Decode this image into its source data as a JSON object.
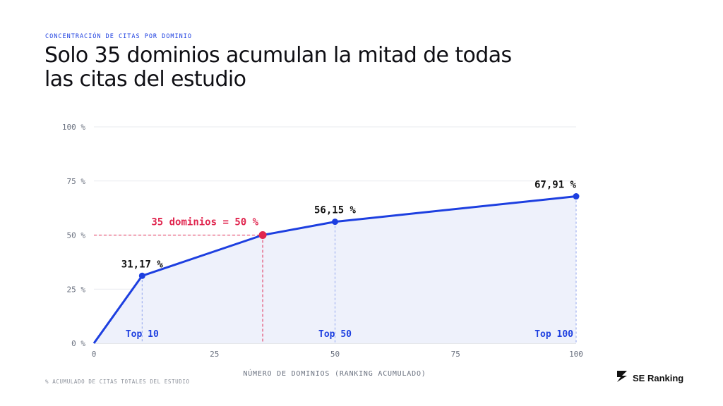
{
  "eyebrow": "CONCENTRACIÓN DE CITAS POR DOMINIO",
  "title_line1": "Solo 35 dominios acumulan la mitad de todas",
  "title_line2": "las citas del estudio",
  "footnote": "% ACUMULADO DE CITAS TOTALES DEL ESTUDIO",
  "brand": {
    "name": "SE Ranking",
    "logo_icon": "se-ranking-logo-icon"
  },
  "colors": {
    "line": "#1d3fe0",
    "highlight": "#e0264f",
    "area": "#eef1fb",
    "grid": "#e9ebef",
    "axis": "#6b7280"
  },
  "chart_data": {
    "type": "area",
    "xlabel": "NÚMERO DE DOMINIOS (RANKING ACUMULADO)",
    "ylabel": "",
    "xlim": [
      0,
      100
    ],
    "ylim": [
      0,
      100
    ],
    "x_ticks": [
      0,
      25,
      50,
      75,
      100
    ],
    "x_tick_labels": [
      "0",
      "25",
      "50",
      "75",
      "100"
    ],
    "y_ticks": [
      0,
      25,
      50,
      75,
      100
    ],
    "y_tick_labels": [
      "0 %",
      "25 %",
      "50 %",
      "75 %",
      "100 %"
    ],
    "grid": "horizontal",
    "series": [
      {
        "x": [
          0,
          10,
          35,
          50,
          100
        ],
        "y": [
          0,
          31.17,
          50,
          56.15,
          67.91
        ]
      }
    ],
    "markers": [
      {
        "x": 10,
        "y": 31.17,
        "label": "31,17 %",
        "bottom_label": "Top 10",
        "highlight": false
      },
      {
        "x": 35,
        "y": 50,
        "label": "35 dominios = 50 %",
        "bottom_label": "",
        "highlight": true
      },
      {
        "x": 50,
        "y": 56.15,
        "label": "56,15 %",
        "bottom_label": "Top 50",
        "highlight": false
      },
      {
        "x": 100,
        "y": 67.91,
        "label": "67,91 %",
        "bottom_label": "Top 100",
        "highlight": false
      }
    ]
  }
}
